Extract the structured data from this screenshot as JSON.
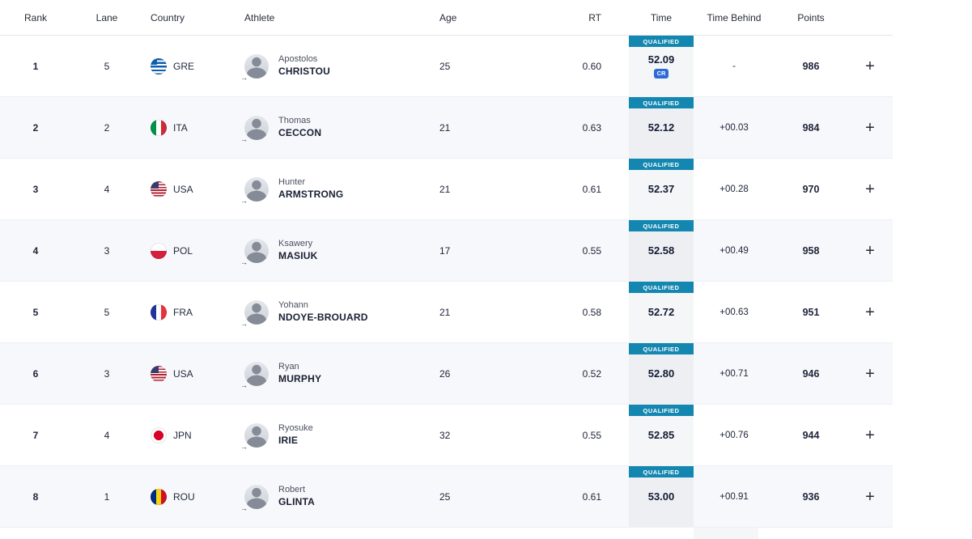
{
  "header": {
    "columns": {
      "rank": "Rank",
      "lane": "Lane",
      "country": "Country",
      "athlete": "Athlete",
      "age": "Age",
      "rt": "RT",
      "time": "Time",
      "time_behind": "Time Behind",
      "points": "Points"
    }
  },
  "ui": {
    "expand_icon": "+",
    "avatar_arrow_icon": "→"
  },
  "colors": {
    "qualified_badge": "#1487b1",
    "record_badge": "#2e6bd8",
    "row_alt": "#f7f8fb"
  },
  "rows": [
    {
      "rank": "1",
      "lane": "5",
      "country_code": "GRE",
      "first_name": "Apostolos",
      "last_name": "CHRISTOU",
      "age": "25",
      "rt": "0.60",
      "status": "QUALIFIED",
      "time": "52.09",
      "record": "CR",
      "time_behind": "-",
      "points": "986"
    },
    {
      "rank": "2",
      "lane": "2",
      "country_code": "ITA",
      "first_name": "Thomas",
      "last_name": "CECCON",
      "age": "21",
      "rt": "0.63",
      "status": "QUALIFIED",
      "time": "52.12",
      "record": "",
      "time_behind": "+00.03",
      "points": "984"
    },
    {
      "rank": "3",
      "lane": "4",
      "country_code": "USA",
      "first_name": "Hunter",
      "last_name": "ARMSTRONG",
      "age": "21",
      "rt": "0.61",
      "status": "QUALIFIED",
      "time": "52.37",
      "record": "",
      "time_behind": "+00.28",
      "points": "970"
    },
    {
      "rank": "4",
      "lane": "3",
      "country_code": "POL",
      "first_name": "Ksawery",
      "last_name": "MASIUK",
      "age": "17",
      "rt": "0.55",
      "status": "QUALIFIED",
      "time": "52.58",
      "record": "",
      "time_behind": "+00.49",
      "points": "958"
    },
    {
      "rank": "5",
      "lane": "5",
      "country_code": "FRA",
      "first_name": "Yohann",
      "last_name": "NDOYE-BROUARD",
      "age": "21",
      "rt": "0.58",
      "status": "QUALIFIED",
      "time": "52.72",
      "record": "",
      "time_behind": "+00.63",
      "points": "951"
    },
    {
      "rank": "6",
      "lane": "3",
      "country_code": "USA",
      "first_name": "Ryan",
      "last_name": "MURPHY",
      "age": "26",
      "rt": "0.52",
      "status": "QUALIFIED",
      "time": "52.80",
      "record": "",
      "time_behind": "+00.71",
      "points": "946"
    },
    {
      "rank": "7",
      "lane": "4",
      "country_code": "JPN",
      "first_name": "Ryosuke",
      "last_name": "IRIE",
      "age": "32",
      "rt": "0.55",
      "status": "QUALIFIED",
      "time": "52.85",
      "record": "",
      "time_behind": "+00.76",
      "points": "944"
    },
    {
      "rank": "8",
      "lane": "1",
      "country_code": "ROU",
      "first_name": "Robert",
      "last_name": "GLINTA",
      "age": "25",
      "rt": "0.61",
      "status": "QUALIFIED",
      "time": "53.00",
      "record": "",
      "time_behind": "+00.91",
      "points": "936"
    }
  ]
}
